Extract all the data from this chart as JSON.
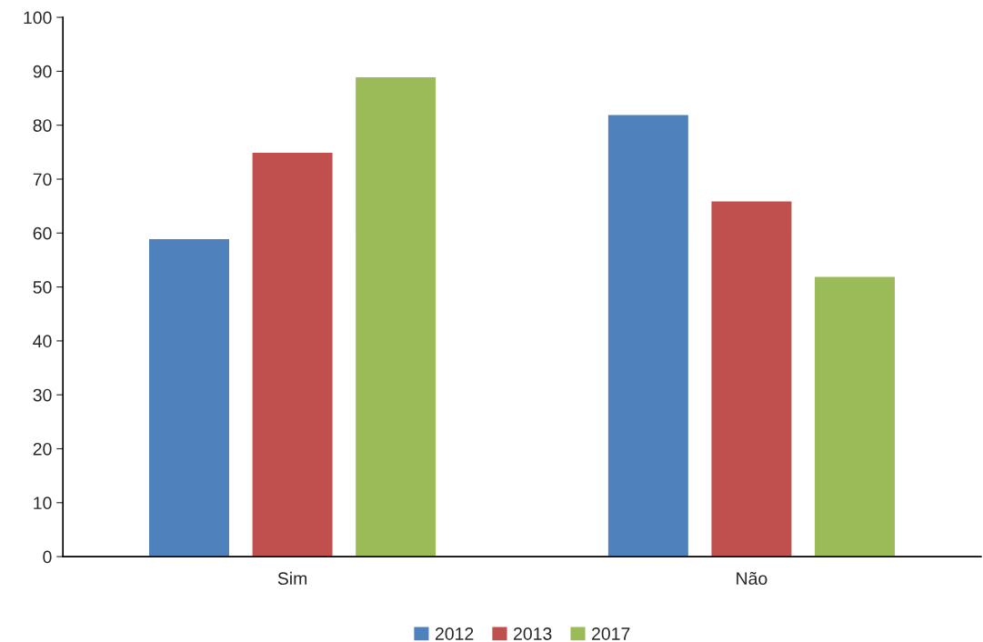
{
  "chart_data": {
    "type": "bar",
    "categories": [
      "Sim",
      "Não"
    ],
    "series": [
      {
        "name": "2012",
        "color": "#4f81bd",
        "values": [
          59,
          82
        ]
      },
      {
        "name": "2013",
        "color": "#c0504d",
        "values": [
          75,
          66
        ]
      },
      {
        "name": "2017",
        "color": "#9bbb59",
        "values": [
          89,
          52
        ]
      }
    ],
    "ylim": [
      0,
      100
    ],
    "yticks": [
      0,
      10,
      20,
      30,
      40,
      50,
      60,
      70,
      80,
      90,
      100
    ],
    "grid": false,
    "legend": "bottom"
  }
}
